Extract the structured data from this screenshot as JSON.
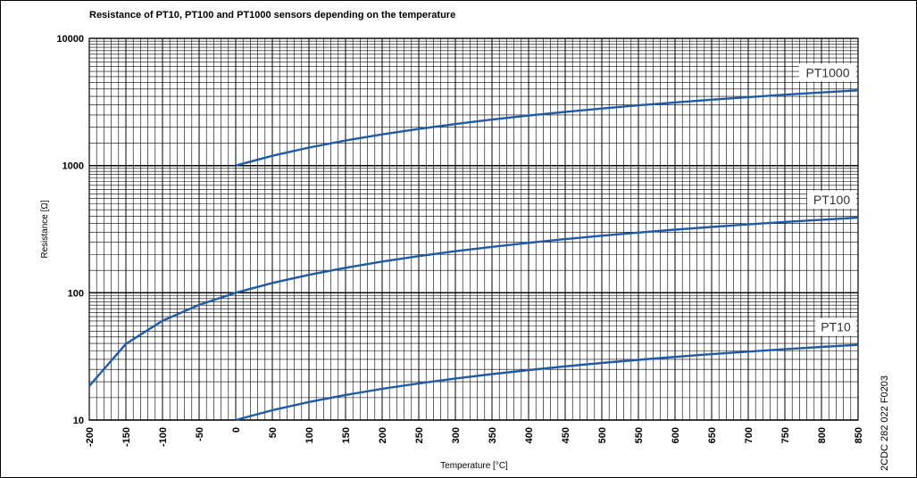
{
  "chart_data": {
    "type": "line",
    "title": "Resistance of PT10, PT100 and PT1000 sensors depending on the temperature",
    "xlabel": "Temperature [°C]",
    "ylabel": "Resistance [Ω]",
    "xlim": [
      -200,
      850
    ],
    "ylim": [
      10,
      10000
    ],
    "yscale": "log",
    "grid": true,
    "x_ticks": [
      "-200",
      "-150",
      "-100",
      "-50",
      "0",
      "50",
      "100",
      "150",
      "200",
      "250",
      "300",
      "350",
      "400",
      "450",
      "500",
      "550",
      "600",
      "650",
      "700",
      "750",
      "800",
      "850"
    ],
    "y_ticks": [
      "10",
      "100",
      "1000",
      "10000"
    ],
    "line_color": "#1f5aa6",
    "series": [
      {
        "name": "PT1000",
        "x": [
          0,
          50,
          100,
          150,
          200,
          250,
          300,
          350,
          400,
          450,
          500,
          550,
          600,
          650,
          700,
          750,
          800,
          850
        ],
        "y": [
          1000,
          1194,
          1385,
          1573,
          1759,
          1941,
          2121,
          2297,
          2471,
          2642,
          2809,
          2974,
          3136,
          3295,
          3451,
          3604,
          3754,
          3901
        ]
      },
      {
        "name": "PT100",
        "x": [
          -200,
          -150,
          -100,
          -50,
          0,
          50,
          100,
          150,
          200,
          250,
          300,
          350,
          400,
          450,
          500,
          550,
          600,
          650,
          700,
          750,
          800,
          850
        ],
        "y": [
          18.5,
          39.7,
          60.3,
          80.3,
          100,
          119.4,
          138.5,
          157.3,
          175.9,
          194.1,
          212.1,
          229.7,
          247.1,
          264.2,
          280.9,
          297.4,
          313.6,
          329.5,
          345.1,
          360.4,
          375.4,
          390.1
        ]
      },
      {
        "name": "PT10",
        "x": [
          0,
          50,
          100,
          150,
          200,
          250,
          300,
          350,
          400,
          450,
          500,
          550,
          600,
          650,
          700,
          750,
          800,
          850
        ],
        "y": [
          10,
          11.94,
          13.85,
          15.73,
          17.59,
          19.41,
          21.21,
          22.97,
          24.71,
          26.42,
          28.09,
          29.74,
          31.36,
          32.95,
          34.51,
          36.04,
          37.54,
          39.01
        ]
      }
    ]
  },
  "doc_code": "2CDC 282 022 F0203"
}
